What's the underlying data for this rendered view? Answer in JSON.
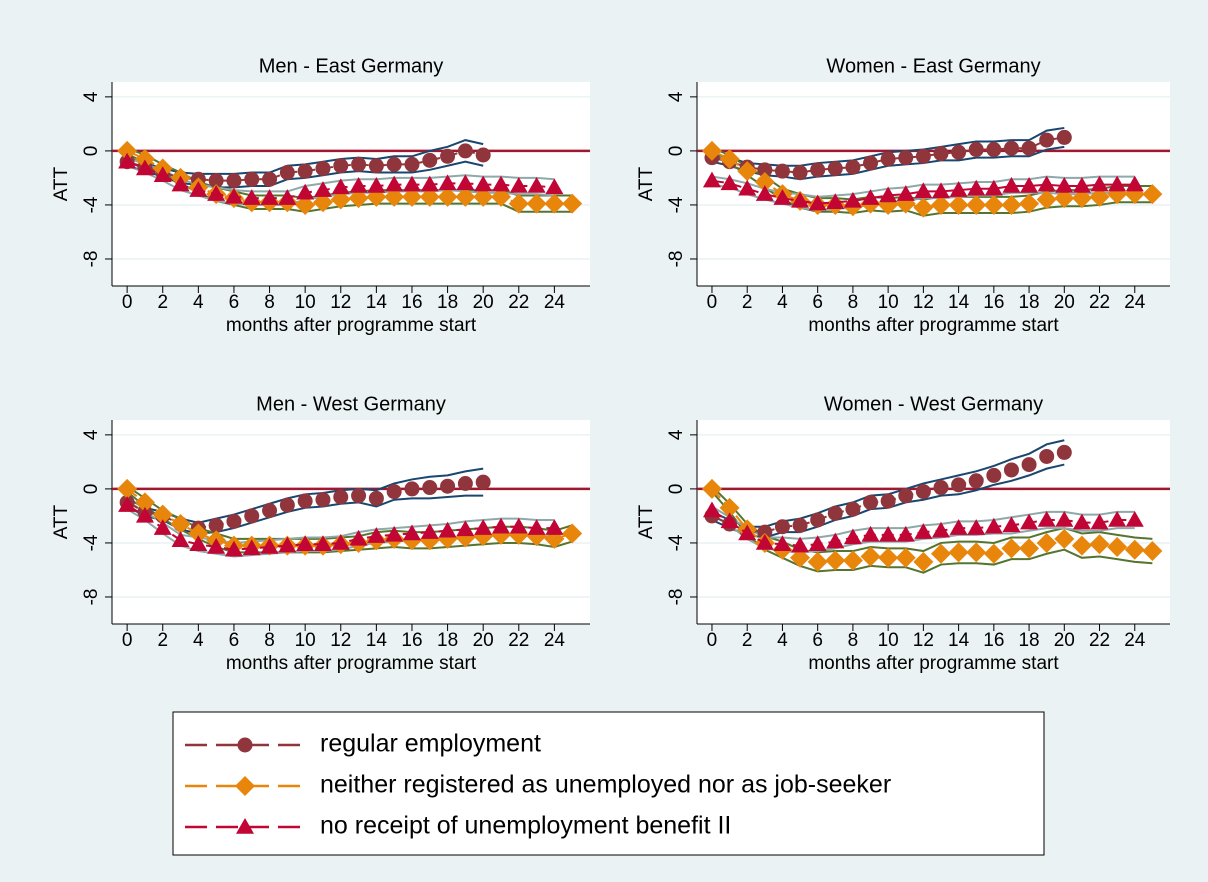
{
  "chart_data": [
    {
      "type": "line",
      "title": "Men - East Germany",
      "x_label": "months after programme start",
      "y_label": "ATT",
      "xlim": [
        -0.85,
        26
      ],
      "ylim": [
        -10,
        5.1
      ],
      "xticks": [
        0,
        2,
        4,
        6,
        8,
        10,
        12,
        14,
        16,
        18,
        20,
        22,
        24
      ],
      "yticks": [
        -8,
        -4,
        0,
        4
      ],
      "grid": true,
      "reference_line": 0,
      "x": [
        0,
        1,
        2,
        3,
        4,
        5,
        6,
        7,
        8,
        9,
        10,
        11,
        12,
        13,
        14,
        15,
        16,
        17,
        18,
        19,
        20,
        21,
        22,
        23,
        24,
        25
      ],
      "series": [
        {
          "name": "regular employment",
          "color": "#90353b",
          "marker": "circle",
          "band_color": "#1a476f",
          "values": [
            -0.8,
            -1.2,
            -1.6,
            -2.0,
            -2.1,
            -2.2,
            -2.2,
            -2.1,
            -2.1,
            -1.6,
            -1.5,
            -1.3,
            -1.1,
            -1.0,
            -1.1,
            -1.0,
            -1.0,
            -0.7,
            -0.4,
            0,
            -0.3,
            null,
            null,
            null,
            null,
            null
          ],
          "errors": [
            0.3,
            0.3,
            0.3,
            0.4,
            0.4,
            0.5,
            0.5,
            0.5,
            0.5,
            0.5,
            0.5,
            0.5,
            0.5,
            0.5,
            0.5,
            0.6,
            0.6,
            0.7,
            0.7,
            0.8,
            0.8,
            null,
            null,
            null,
            null,
            null
          ]
        },
        {
          "name": "neither registered as unemployed nor as job-seeker",
          "color": "#e8860c",
          "marker": "diamond",
          "band_color": "#55752f",
          "values": [
            0,
            -0.6,
            -1.3,
            -2.0,
            -2.7,
            -3.2,
            -3.5,
            -3.8,
            -3.8,
            -3.8,
            -4.0,
            -3.8,
            -3.6,
            -3.5,
            -3.4,
            -3.4,
            -3.4,
            -3.4,
            -3.4,
            -3.4,
            -3.4,
            -3.4,
            -3.9,
            -3.9,
            -3.9,
            -3.9
          ],
          "errors": [
            0.2,
            0.3,
            0.3,
            0.4,
            0.4,
            0.5,
            0.5,
            0.5,
            0.5,
            0.5,
            0.5,
            0.5,
            0.5,
            0.5,
            0.5,
            0.5,
            0.5,
            0.5,
            0.5,
            0.5,
            0.5,
            0.5,
            0.6,
            0.6,
            0.6,
            0.6
          ]
        },
        {
          "name": "no receipt of unemployment benefit II",
          "color": "#c10534",
          "marker": "triangle",
          "band_color": "#8fa8a8",
          "values": [
            -0.8,
            -1.3,
            -1.8,
            -2.5,
            -2.9,
            -3.2,
            -3.4,
            -3.5,
            -3.5,
            -3.5,
            -3.1,
            -2.9,
            -2.7,
            -2.6,
            -2.6,
            -2.5,
            -2.5,
            -2.5,
            -2.4,
            -2.4,
            -2.5,
            -2.5,
            -2.6,
            -2.6,
            -2.7,
            null
          ],
          "errors": [
            0.3,
            0.3,
            0.4,
            0.4,
            0.4,
            0.5,
            0.5,
            0.5,
            0.5,
            0.5,
            0.5,
            0.5,
            0.5,
            0.5,
            0.5,
            0.5,
            0.5,
            0.5,
            0.5,
            0.6,
            0.6,
            0.6,
            0.6,
            0.6,
            0.6,
            null
          ]
        }
      ]
    },
    {
      "type": "line",
      "title": "Women - East Germany",
      "x_label": "months after programme start",
      "y_label": "ATT",
      "xlim": [
        -0.85,
        26
      ],
      "ylim": [
        -10,
        5.1
      ],
      "xticks": [
        0,
        2,
        4,
        6,
        8,
        10,
        12,
        14,
        16,
        18,
        20,
        22,
        24
      ],
      "yticks": [
        -8,
        -4,
        0,
        4
      ],
      "grid": true,
      "reference_line": 0,
      "x": [
        0,
        1,
        2,
        3,
        4,
        5,
        6,
        7,
        8,
        9,
        10,
        11,
        12,
        13,
        14,
        15,
        16,
        17,
        18,
        19,
        20,
        21,
        22,
        23,
        24,
        25
      ],
      "series": [
        {
          "name": "regular employment",
          "color": "#90353b",
          "marker": "circle",
          "band_color": "#1a476f",
          "values": [
            -0.5,
            -0.8,
            -1.2,
            -1.4,
            -1.5,
            -1.6,
            -1.4,
            -1.3,
            -1.2,
            -0.9,
            -0.6,
            -0.5,
            -0.4,
            -0.2,
            -0.1,
            0.1,
            0.1,
            0.2,
            0.2,
            0.8,
            1.0,
            null,
            null,
            null,
            null,
            null
          ],
          "errors": [
            0.3,
            0.3,
            0.3,
            0.4,
            0.4,
            0.5,
            0.5,
            0.5,
            0.5,
            0.5,
            0.5,
            0.5,
            0.5,
            0.5,
            0.6,
            0.6,
            0.6,
            0.6,
            0.6,
            0.7,
            0.7,
            null,
            null,
            null,
            null,
            null
          ]
        },
        {
          "name": "neither registered as unemployed nor as job-seeker",
          "color": "#e8860c",
          "marker": "diamond",
          "band_color": "#55752f",
          "values": [
            0,
            -0.6,
            -1.5,
            -2.3,
            -3.2,
            -3.7,
            -4.0,
            -4.0,
            -4.1,
            -3.9,
            -4.0,
            -3.9,
            -4.2,
            -4.0,
            -4.0,
            -4.0,
            -4.0,
            -4.0,
            -3.9,
            -3.6,
            -3.5,
            -3.5,
            -3.4,
            -3.2,
            -3.2,
            -3.2
          ],
          "errors": [
            0.2,
            0.3,
            0.3,
            0.4,
            0.4,
            0.5,
            0.5,
            0.5,
            0.5,
            0.5,
            0.5,
            0.5,
            0.6,
            0.6,
            0.6,
            0.6,
            0.6,
            0.6,
            0.6,
            0.6,
            0.6,
            0.6,
            0.6,
            0.6,
            0.6,
            0.6
          ]
        },
        {
          "name": "no receipt of unemployment benefit II",
          "color": "#c10534",
          "marker": "triangle",
          "band_color": "#8fa8a8",
          "values": [
            -2.2,
            -2.4,
            -2.8,
            -3.2,
            -3.5,
            -3.7,
            -3.9,
            -3.8,
            -3.7,
            -3.5,
            -3.3,
            -3.2,
            -3.0,
            -3.0,
            -2.9,
            -2.8,
            -2.8,
            -2.6,
            -2.6,
            -2.5,
            -2.6,
            -2.6,
            -2.5,
            -2.5,
            -2.5,
            null
          ],
          "errors": [
            0.3,
            0.3,
            0.4,
            0.4,
            0.4,
            0.5,
            0.5,
            0.5,
            0.5,
            0.5,
            0.5,
            0.5,
            0.5,
            0.5,
            0.5,
            0.5,
            0.5,
            0.5,
            0.5,
            0.6,
            0.6,
            0.6,
            0.6,
            0.6,
            0.6,
            null
          ]
        }
      ]
    },
    {
      "type": "line",
      "title": "Men - West Germany",
      "x_label": "months after programme start",
      "y_label": "ATT",
      "xlim": [
        -0.85,
        26
      ],
      "ylim": [
        -10,
        5.1
      ],
      "xticks": [
        0,
        2,
        4,
        6,
        8,
        10,
        12,
        14,
        16,
        18,
        20,
        22,
        24
      ],
      "yticks": [
        -8,
        -4,
        0,
        4
      ],
      "grid": true,
      "reference_line": 0,
      "x": [
        0,
        1,
        2,
        3,
        4,
        5,
        6,
        7,
        8,
        9,
        10,
        11,
        12,
        13,
        14,
        15,
        16,
        17,
        18,
        19,
        20,
        21,
        22,
        23,
        24,
        25
      ],
      "series": [
        {
          "name": "regular employment",
          "color": "#90353b",
          "marker": "circle",
          "band_color": "#1a476f",
          "values": [
            -1.0,
            -1.7,
            -2.0,
            -2.6,
            -2.9,
            -2.7,
            -2.4,
            -2.0,
            -1.6,
            -1.2,
            -0.9,
            -0.8,
            -0.6,
            -0.5,
            -0.7,
            -0.2,
            0.0,
            0.1,
            0.2,
            0.4,
            0.5,
            null,
            null,
            null,
            null,
            null
          ],
          "errors": [
            0.3,
            0.3,
            0.3,
            0.4,
            0.4,
            0.5,
            0.5,
            0.5,
            0.5,
            0.5,
            0.5,
            0.5,
            0.5,
            0.5,
            0.6,
            0.6,
            0.7,
            0.8,
            0.8,
            0.9,
            1.0,
            null,
            null,
            null,
            null,
            null
          ]
        },
        {
          "name": "neither registered as unemployed nor as job-seeker",
          "color": "#e8860c",
          "marker": "diamond",
          "band_color": "#55752f",
          "values": [
            0,
            -1.0,
            -1.9,
            -2.6,
            -3.3,
            -3.8,
            -4.2,
            -4.2,
            -4.2,
            -4.2,
            -4.2,
            -4.2,
            -4.1,
            -4.0,
            -3.8,
            -3.7,
            -3.8,
            -3.8,
            -3.7,
            -3.6,
            -3.5,
            -3.4,
            -3.4,
            -3.5,
            -3.7,
            -3.3
          ],
          "errors": [
            0.2,
            0.3,
            0.3,
            0.4,
            0.4,
            0.5,
            0.5,
            0.5,
            0.5,
            0.5,
            0.5,
            0.5,
            0.5,
            0.5,
            0.6,
            0.6,
            0.6,
            0.6,
            0.6,
            0.6,
            0.6,
            0.6,
            0.6,
            0.6,
            0.6,
            0.6
          ]
        },
        {
          "name": "no receipt of unemployment benefit II",
          "color": "#c10534",
          "marker": "triangle",
          "band_color": "#8fa8a8",
          "values": [
            -1.2,
            -2.0,
            -2.9,
            -3.8,
            -4.1,
            -4.3,
            -4.5,
            -4.4,
            -4.3,
            -4.2,
            -4.1,
            -4.1,
            -4.0,
            -3.7,
            -3.5,
            -3.4,
            -3.3,
            -3.2,
            -3.1,
            -3.0,
            -2.9,
            -2.8,
            -2.8,
            -2.9,
            -2.9,
            null
          ],
          "errors": [
            0.3,
            0.3,
            0.4,
            0.4,
            0.5,
            0.5,
            0.5,
            0.5,
            0.5,
            0.5,
            0.5,
            0.5,
            0.5,
            0.5,
            0.5,
            0.5,
            0.5,
            0.5,
            0.5,
            0.6,
            0.6,
            0.6,
            0.6,
            0.6,
            0.6,
            null
          ]
        }
      ]
    },
    {
      "type": "line",
      "title": "Women - West Germany",
      "x_label": "months after programme start",
      "y_label": "ATT",
      "xlim": [
        -0.85,
        26
      ],
      "ylim": [
        -10,
        5.1
      ],
      "xticks": [
        0,
        2,
        4,
        6,
        8,
        10,
        12,
        14,
        16,
        18,
        20,
        22,
        24
      ],
      "yticks": [
        -8,
        -4,
        0,
        4
      ],
      "grid": true,
      "reference_line": 0,
      "x": [
        0,
        1,
        2,
        3,
        4,
        5,
        6,
        7,
        8,
        9,
        10,
        11,
        12,
        13,
        14,
        15,
        16,
        17,
        18,
        19,
        20,
        21,
        22,
        23,
        24,
        25
      ],
      "series": [
        {
          "name": "regular employment",
          "color": "#90353b",
          "marker": "circle",
          "band_color": "#1a476f",
          "values": [
            -2.0,
            -2.6,
            -3.1,
            -3.2,
            -2.8,
            -2.7,
            -2.3,
            -1.8,
            -1.5,
            -1.0,
            -0.9,
            -0.5,
            -0.2,
            0.1,
            0.3,
            0.6,
            1.0,
            1.4,
            1.8,
            2.4,
            2.7,
            null,
            null,
            null,
            null,
            null
          ],
          "errors": [
            0.3,
            0.3,
            0.3,
            0.4,
            0.4,
            0.5,
            0.5,
            0.5,
            0.5,
            0.5,
            0.5,
            0.5,
            0.6,
            0.6,
            0.7,
            0.7,
            0.7,
            0.8,
            0.8,
            0.9,
            0.9,
            null,
            null,
            null,
            null,
            null
          ]
        },
        {
          "name": "neither registered as unemployed nor as job-seeker",
          "color": "#e8860c",
          "marker": "diamond",
          "band_color": "#55752f",
          "values": [
            0,
            -1.4,
            -3.0,
            -4.0,
            -4.5,
            -5.1,
            -5.4,
            -5.3,
            -5.3,
            -5.0,
            -5.1,
            -5.1,
            -5.4,
            -4.8,
            -4.7,
            -4.7,
            -4.8,
            -4.4,
            -4.4,
            -4.0,
            -3.7,
            -4.2,
            -4.1,
            -4.3,
            -4.5,
            -4.6
          ],
          "errors": [
            0.2,
            0.3,
            0.4,
            0.5,
            0.6,
            0.6,
            0.7,
            0.7,
            0.7,
            0.7,
            0.7,
            0.7,
            0.8,
            0.8,
            0.8,
            0.8,
            0.8,
            0.8,
            0.8,
            0.8,
            0.8,
            0.9,
            0.9,
            0.9,
            0.9,
            0.9
          ]
        },
        {
          "name": "no receipt of unemployment benefit II",
          "color": "#c10534",
          "marker": "triangle",
          "band_color": "#8fa8a8",
          "values": [
            -1.6,
            -2.4,
            -3.3,
            -4.0,
            -4.1,
            -4.2,
            -4.1,
            -3.9,
            -3.6,
            -3.4,
            -3.4,
            -3.4,
            -3.2,
            -3.1,
            -2.9,
            -2.9,
            -2.8,
            -2.7,
            -2.5,
            -2.3,
            -2.3,
            -2.5,
            -2.5,
            -2.3,
            -2.3,
            null
          ],
          "errors": [
            0.3,
            0.3,
            0.4,
            0.4,
            0.5,
            0.5,
            0.5,
            0.5,
            0.5,
            0.5,
            0.5,
            0.5,
            0.5,
            0.5,
            0.5,
            0.5,
            0.5,
            0.6,
            0.6,
            0.6,
            0.6,
            0.6,
            0.6,
            0.6,
            0.6,
            null
          ]
        }
      ]
    }
  ]
}
